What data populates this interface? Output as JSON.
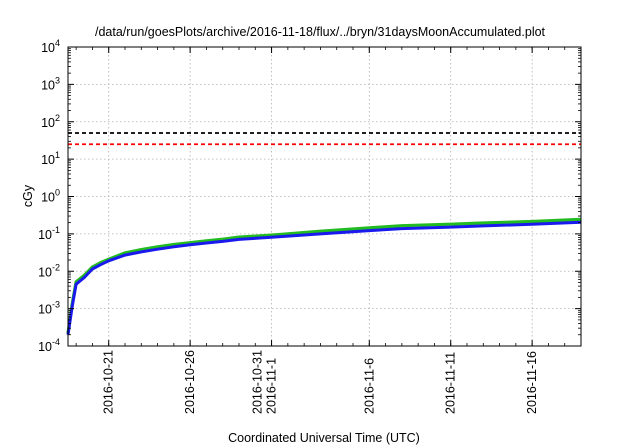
{
  "chart_data": {
    "type": "line",
    "title": "/data/run/goesPlots/archive/2016-11-18/flux/../bryn/31daysMoonAccumulated.plot",
    "xlabel": "Coordinated Universal Time (UTC)",
    "ylabel": "cGy",
    "yscale": "log",
    "ylim": [
      0.0001,
      10000
    ],
    "xlim": [
      "2016-10-18T12:00",
      "2016-11-19T00:00"
    ],
    "grid": true,
    "y_ticks": [
      {
        "base": "10",
        "exp": "-4",
        "value": 0.0001
      },
      {
        "base": "10",
        "exp": "-3",
        "value": 0.001
      },
      {
        "base": "10",
        "exp": "-2",
        "value": 0.01
      },
      {
        "base": "10",
        "exp": "-1",
        "value": 0.1
      },
      {
        "base": "10",
        "exp": "0",
        "value": 1
      },
      {
        "base": "10",
        "exp": "1",
        "value": 10
      },
      {
        "base": "10",
        "exp": "2",
        "value": 100
      },
      {
        "base": "10",
        "exp": "3",
        "value": 1000
      },
      {
        "base": "10",
        "exp": "4",
        "value": 10000
      }
    ],
    "x_ticks": [
      {
        "date": "2016-10-21",
        "lines": [
          "2016-10-21"
        ]
      },
      {
        "date": "2016-10-26",
        "lines": [
          "2016-10-26"
        ]
      },
      {
        "date": "2016-10-31",
        "lines": [
          "2016-10-31",
          "2016-11-1"
        ]
      },
      {
        "date": "2016-11-06",
        "lines": [
          "2016-11-6"
        ]
      },
      {
        "date": "2016-11-11",
        "lines": [
          "2016-11-11"
        ]
      },
      {
        "date": "2016-11-16",
        "lines": [
          "2016-11-16"
        ]
      }
    ],
    "hlines": [
      {
        "y": 50,
        "color": "#000000",
        "style": "dashed"
      },
      {
        "y": 25,
        "color": "#ff0000",
        "style": "dashed"
      }
    ],
    "series": [
      {
        "color": "#22bb22",
        "x": [
          "2016-10-18T12:00",
          "2016-10-18T18:00",
          "2016-10-19T00:00",
          "2016-10-19T12:00",
          "2016-10-20T00:00",
          "2016-10-20T12:00",
          "2016-10-21T00:00",
          "2016-10-22T00:00",
          "2016-10-23T00:00",
          "2016-10-24T00:00",
          "2016-10-25T00:00",
          "2016-10-26T00:00",
          "2016-10-27T00:00",
          "2016-10-28T00:00",
          "2016-10-29T00:00",
          "2016-10-31T00:00",
          "2016-11-01T00:00",
          "2016-11-03T00:00",
          "2016-11-06T00:00",
          "2016-11-08T00:00",
          "2016-11-11T00:00",
          "2016-11-13T00:00",
          "2016-11-16T00:00",
          "2016-11-19T00:00"
        ],
        "y": [
          0.00022,
          0.0013,
          0.0052,
          0.0078,
          0.013,
          0.017,
          0.021,
          0.031,
          0.038,
          0.045,
          0.052,
          0.058,
          0.065,
          0.072,
          0.082,
          0.093,
          0.1,
          0.118,
          0.145,
          0.165,
          0.182,
          0.195,
          0.215,
          0.245
        ]
      },
      {
        "color": "#1a1aee",
        "x": [
          "2016-10-18T12:00",
          "2016-10-18T18:00",
          "2016-10-19T00:00",
          "2016-10-19T12:00",
          "2016-10-20T00:00",
          "2016-10-20T12:00",
          "2016-10-21T00:00",
          "2016-10-22T00:00",
          "2016-10-23T00:00",
          "2016-10-24T00:00",
          "2016-10-25T00:00",
          "2016-10-26T00:00",
          "2016-10-27T00:00",
          "2016-10-28T00:00",
          "2016-10-29T00:00",
          "2016-10-31T00:00",
          "2016-11-01T00:00",
          "2016-11-03T00:00",
          "2016-11-06T00:00",
          "2016-11-08T00:00",
          "2016-11-11T00:00",
          "2016-11-13T00:00",
          "2016-11-16T00:00",
          "2016-11-19T00:00"
        ],
        "y": [
          0.0002,
          0.0011,
          0.0045,
          0.0068,
          0.0115,
          0.015,
          0.019,
          0.027,
          0.033,
          0.039,
          0.045,
          0.051,
          0.057,
          0.063,
          0.071,
          0.081,
          0.087,
          0.1,
          0.122,
          0.138,
          0.152,
          0.163,
          0.18,
          0.205
        ]
      }
    ]
  }
}
